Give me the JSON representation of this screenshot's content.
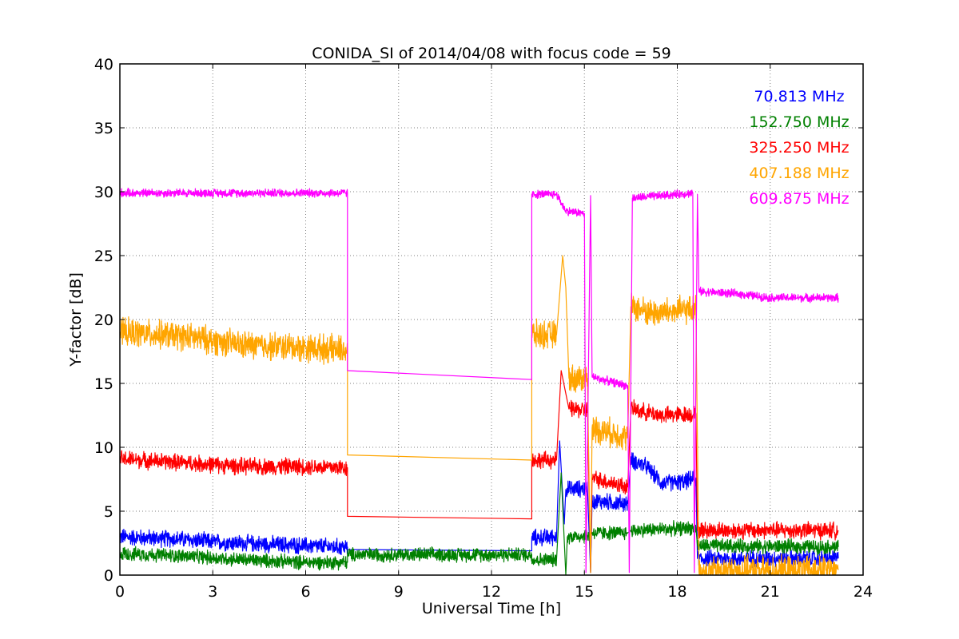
{
  "chart_data": {
    "type": "line",
    "title": "CONIDA_SI of 2014/04/08 with focus code = 59",
    "xlabel": "Universal Time [h]",
    "ylabel": "Y-factor [dB]",
    "xlim": [
      0,
      24
    ],
    "ylim": [
      0,
      40
    ],
    "xticks": [
      0,
      3,
      6,
      9,
      12,
      15,
      18,
      21,
      24
    ],
    "yticks": [
      0,
      5,
      10,
      15,
      20,
      25,
      30,
      35,
      40
    ],
    "grid": true,
    "legend_position": "top-right",
    "series": [
      {
        "name": "70.813 MHz",
        "color": "#0000ff",
        "noise": 0.6,
        "points": [
          [
            0,
            3.0
          ],
          [
            1,
            2.9
          ],
          [
            2,
            2.8
          ],
          [
            3,
            2.6
          ],
          [
            4,
            2.5
          ],
          [
            5,
            2.4
          ],
          [
            6,
            2.3
          ],
          [
            7,
            2.2
          ],
          [
            7.35,
            2.2
          ],
          [
            7.35,
            2.0
          ],
          [
            13.3,
            1.9
          ],
          [
            13.3,
            2.9
          ],
          [
            14.1,
            3.0
          ],
          [
            14.2,
            10.5
          ],
          [
            14.35,
            4.0
          ],
          [
            14.4,
            6.7
          ],
          [
            15.1,
            6.8
          ],
          [
            15.2,
            0.2
          ],
          [
            15.25,
            5.8
          ],
          [
            16.4,
            5.6
          ],
          [
            16.5,
            9.0
          ],
          [
            17.0,
            8.5
          ],
          [
            17.5,
            7.2
          ],
          [
            18.2,
            7.3
          ],
          [
            18.6,
            7.6
          ],
          [
            18.65,
            1.3
          ],
          [
            23.2,
            1.3
          ]
        ]
      },
      {
        "name": "152.750 MHz",
        "color": "#008000",
        "noise": 0.5,
        "points": [
          [
            0,
            1.7
          ],
          [
            2,
            1.5
          ],
          [
            4,
            1.2
          ],
          [
            6,
            1.0
          ],
          [
            7.35,
            1.0
          ],
          [
            7.35,
            1.6
          ],
          [
            13.3,
            1.6
          ],
          [
            13.3,
            1.2
          ],
          [
            14.1,
            1.2
          ],
          [
            14.25,
            8.0
          ],
          [
            14.4,
            0.0
          ],
          [
            14.45,
            3.0
          ],
          [
            15.2,
            3.1
          ],
          [
            15.25,
            3.3
          ],
          [
            16.4,
            3.3
          ],
          [
            16.5,
            3.5
          ],
          [
            18.6,
            3.7
          ],
          [
            18.65,
            2.3
          ],
          [
            23.2,
            2.2
          ]
        ]
      },
      {
        "name": "325.250 MHz",
        "color": "#ff0000",
        "noise": 0.6,
        "points": [
          [
            0,
            9.1
          ],
          [
            2,
            8.8
          ],
          [
            4,
            8.5
          ],
          [
            6,
            8.5
          ],
          [
            7.35,
            8.4
          ],
          [
            7.35,
            4.6
          ],
          [
            13.3,
            4.4
          ],
          [
            13.3,
            9.0
          ],
          [
            14.1,
            9.0
          ],
          [
            14.25,
            16.0
          ],
          [
            14.5,
            13.0
          ],
          [
            15.1,
            12.9
          ],
          [
            15.2,
            0.2
          ],
          [
            15.25,
            7.6
          ],
          [
            16.4,
            6.9
          ],
          [
            16.5,
            13.0
          ],
          [
            17.5,
            12.5
          ],
          [
            18.6,
            12.6
          ],
          [
            18.65,
            3.5
          ],
          [
            23.2,
            3.5
          ]
        ]
      },
      {
        "name": "407.188 MHz",
        "color": "#ffa500",
        "noise": 1.0,
        "points": [
          [
            0,
            19.0
          ],
          [
            2,
            18.7
          ],
          [
            4,
            18.0
          ],
          [
            6,
            17.8
          ],
          [
            7.35,
            17.6
          ],
          [
            7.35,
            9.4
          ],
          [
            13.3,
            9.0
          ],
          [
            13.3,
            18.8
          ],
          [
            14.1,
            18.8
          ],
          [
            14.3,
            25.0
          ],
          [
            14.4,
            22.5
          ],
          [
            14.5,
            15.4
          ],
          [
            15.1,
            15.4
          ],
          [
            15.2,
            0.2
          ],
          [
            15.25,
            11.5
          ],
          [
            16.4,
            10.8
          ],
          [
            16.5,
            21.0
          ],
          [
            17.2,
            20.5
          ],
          [
            18.6,
            20.8
          ],
          [
            18.7,
            0.3
          ],
          [
            23.2,
            0.4
          ]
        ]
      },
      {
        "name": "609.875 MHz",
        "color": "#ff00ff",
        "noise": 0.3,
        "points": [
          [
            0,
            29.9
          ],
          [
            2,
            29.9
          ],
          [
            4,
            29.9
          ],
          [
            6,
            29.9
          ],
          [
            7.35,
            29.9
          ],
          [
            7.35,
            16.0
          ],
          [
            13.3,
            15.3
          ],
          [
            13.3,
            29.8
          ],
          [
            14.1,
            29.8
          ],
          [
            14.4,
            28.5
          ],
          [
            15.0,
            28.3
          ],
          [
            15.05,
            0.2
          ],
          [
            15.2,
            29.7
          ],
          [
            15.25,
            15.5
          ],
          [
            16.4,
            14.8
          ],
          [
            16.45,
            0.2
          ],
          [
            16.55,
            29.5
          ],
          [
            18.5,
            29.9
          ],
          [
            18.55,
            0.2
          ],
          [
            18.65,
            29.8
          ],
          [
            18.7,
            22.2
          ],
          [
            20,
            22.0
          ],
          [
            21,
            21.7
          ],
          [
            23.2,
            21.7
          ]
        ]
      }
    ]
  }
}
